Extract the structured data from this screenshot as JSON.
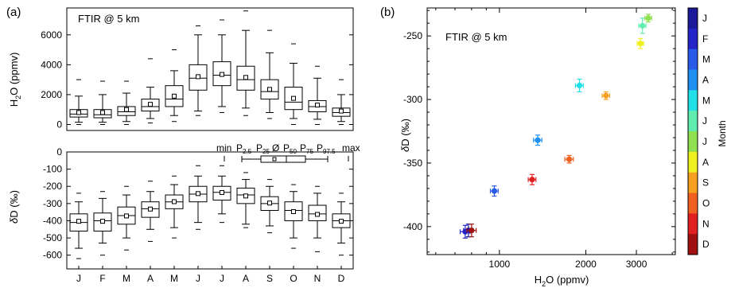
{
  "panel_a": {
    "label": "(a)",
    "top_annotation": "FTIR @ 5 km",
    "top_ylabel": "H2O (ppmv)",
    "bottom_ylabel": "δD (‰)",
    "legend": {
      "min": "min",
      "p2_5": "P2.5",
      "p25": "P25",
      "mean": "Ø",
      "p50": "P50",
      "p75": "P75",
      "p97_5": "P97.5",
      "max": "max"
    }
  },
  "panel_b": {
    "label": "(b)",
    "annotation": "FTIR @ 5 km",
    "xlabel": "H2O (ppmv)",
    "ylabel": "δD (‰)",
    "colorbar_label": "Month"
  },
  "chart_data": [
    {
      "type": "box",
      "title": "",
      "annotation": "FTIR @ 5 km",
      "ylabel": "H2O (ppmv)",
      "ylim": [
        -400,
        7800
      ],
      "yticks": [
        0,
        2000,
        4000,
        6000
      ],
      "categories": [
        "J",
        "F",
        "M",
        "A",
        "M",
        "J",
        "J",
        "A",
        "S",
        "O",
        "N",
        "D"
      ],
      "boxes": [
        {
          "min": 0,
          "p2_5": 150,
          "p25": 500,
          "p50": 700,
          "p75": 1000,
          "p97_5": 1900,
          "max": 3000,
          "mean": 800
        },
        {
          "min": 0,
          "p2_5": 150,
          "p25": 450,
          "p50": 650,
          "p75": 1000,
          "p97_5": 2000,
          "max": 2900,
          "mean": 800
        },
        {
          "min": 0,
          "p2_5": 200,
          "p25": 600,
          "p50": 850,
          "p75": 1200,
          "p97_5": 2100,
          "max": 2900,
          "mean": 1000
        },
        {
          "min": 100,
          "p2_5": 400,
          "p25": 900,
          "p50": 1200,
          "p75": 1700,
          "p97_5": 2500,
          "max": 4400,
          "mean": 1350
        },
        {
          "min": 200,
          "p2_5": 600,
          "p25": 1200,
          "p50": 1700,
          "p75": 2600,
          "p97_5": 3600,
          "max": 5000,
          "mean": 1900
        },
        {
          "min": 600,
          "p2_5": 900,
          "p25": 2300,
          "p50": 3100,
          "p75": 4000,
          "p97_5": 6000,
          "max": 6600,
          "mean": 3200
        },
        {
          "min": 800,
          "p2_5": 1200,
          "p25": 2600,
          "p50": 3300,
          "p75": 4200,
          "p97_5": 6000,
          "max": 7000,
          "mean": 3350
        },
        {
          "min": 600,
          "p2_5": 1100,
          "p25": 2300,
          "p50": 3000,
          "p75": 3900,
          "p97_5": 6300,
          "max": 7600,
          "mean": 3150
        },
        {
          "min": 400,
          "p2_5": 800,
          "p25": 1700,
          "p50": 2200,
          "p75": 3000,
          "p97_5": 4800,
          "max": 6300,
          "mean": 2350
        },
        {
          "min": 0,
          "p2_5": 400,
          "p25": 1000,
          "p50": 1500,
          "p75": 2500,
          "p97_5": 4100,
          "max": 5400,
          "mean": 1750
        },
        {
          "min": 0,
          "p2_5": 350,
          "p25": 850,
          "p50": 1200,
          "p75": 1600,
          "p97_5": 3100,
          "max": 3900,
          "mean": 1300
        },
        {
          "min": 0,
          "p2_5": 200,
          "p25": 550,
          "p50": 800,
          "p75": 1100,
          "p97_5": 2000,
          "max": 3000,
          "mean": 900
        }
      ]
    },
    {
      "type": "box",
      "title": "",
      "ylabel": "δD (‰)",
      "ylim": [
        -680,
        0
      ],
      "yticks": [
        0,
        -100,
        -200,
        -300,
        -400,
        -500,
        -600
      ],
      "categories": [
        "J",
        "F",
        "M",
        "A",
        "M",
        "J",
        "J",
        "A",
        "S",
        "O",
        "N",
        "D"
      ],
      "boxes": [
        {
          "min": -620,
          "p2_5": -560,
          "p25": -460,
          "p50": -410,
          "p75": -360,
          "p97_5": -290,
          "max": -240,
          "mean": -403
        },
        {
          "min": -600,
          "p2_5": -530,
          "p25": -460,
          "p50": -400,
          "p75": -355,
          "p97_5": -270,
          "max": -230,
          "mean": -403
        },
        {
          "min": -570,
          "p2_5": -500,
          "p25": -420,
          "p50": -370,
          "p75": -320,
          "p97_5": -250,
          "max": -200,
          "mean": -372
        },
        {
          "min": -520,
          "p2_5": -450,
          "p25": -380,
          "p50": -330,
          "p75": -290,
          "p97_5": -230,
          "max": -170,
          "mean": -332
        },
        {
          "min": -500,
          "p2_5": -440,
          "p25": -330,
          "p50": -290,
          "p75": -250,
          "p97_5": -190,
          "max": -140,
          "mean": -289
        },
        {
          "min": -450,
          "p2_5": -410,
          "p25": -290,
          "p50": -245,
          "p75": -200,
          "p97_5": -140,
          "max": -80,
          "mean": -242
        },
        {
          "min": -410,
          "p2_5": -360,
          "p25": -280,
          "p50": -235,
          "p75": -200,
          "p97_5": -140,
          "max": -80,
          "mean": -236
        },
        {
          "min": -440,
          "p2_5": -420,
          "p25": -300,
          "p50": -250,
          "p75": -210,
          "p97_5": -160,
          "max": -120,
          "mean": -256
        },
        {
          "min": -470,
          "p2_5": -430,
          "p25": -340,
          "p50": -300,
          "p75": -260,
          "p97_5": -200,
          "max": -160,
          "mean": -297
        },
        {
          "min": -560,
          "p2_5": -500,
          "p25": -400,
          "p50": -340,
          "p75": -290,
          "p97_5": -230,
          "max": -190,
          "mean": -347
        },
        {
          "min": -580,
          "p2_5": -500,
          "p25": -400,
          "p50": -360,
          "p75": -310,
          "p97_5": -240,
          "max": -200,
          "mean": -363
        },
        {
          "min": -600,
          "p2_5": -530,
          "p25": -440,
          "p50": -400,
          "p75": -360,
          "p97_5": -290,
          "max": -240,
          "mean": -403
        }
      ]
    },
    {
      "type": "scatter",
      "title": "",
      "annotation": "FTIR @ 5 km",
      "xlabel": "H2O (ppmv)",
      "ylabel": "δD (‰)",
      "xscale": "log",
      "xlim": [
        560,
        4100
      ],
      "ylim": [
        -422,
        -228
      ],
      "xticks": [
        1000,
        2000,
        3000
      ],
      "yticks": [
        -400,
        -350,
        -300,
        -250
      ],
      "points": [
        {
          "month": "J",
          "x": 780,
          "y": -403,
          "xerr": 30,
          "yerr": 5,
          "color": "#1a1a9a"
        },
        {
          "month": "F",
          "x": 760,
          "y": -404,
          "xerr": 30,
          "yerr": 5,
          "color": "#2424c8"
        },
        {
          "month": "M",
          "x": 960,
          "y": -372,
          "xerr": 30,
          "yerr": 4,
          "color": "#2a5ae8"
        },
        {
          "month": "A",
          "x": 1360,
          "y": -332,
          "xerr": 45,
          "yerr": 4,
          "color": "#1e90f0"
        },
        {
          "month": "M",
          "x": 1900,
          "y": -289,
          "xerr": 60,
          "yerr": 5,
          "color": "#22e0e8"
        },
        {
          "month": "J",
          "x": 3150,
          "y": -242,
          "xerr": 90,
          "yerr": 6,
          "color": "#60eeb0"
        },
        {
          "month": "J",
          "x": 3300,
          "y": -236,
          "xerr": 90,
          "yerr": 3,
          "color": "#90e050"
        },
        {
          "month": "A",
          "x": 3100,
          "y": -256,
          "xerr": 80,
          "yerr": 4,
          "color": "#f0f020"
        },
        {
          "month": "S",
          "x": 2350,
          "y": -297,
          "xerr": 70,
          "yerr": 3,
          "color": "#f8a020"
        },
        {
          "month": "O",
          "x": 1750,
          "y": -347,
          "xerr": 60,
          "yerr": 3,
          "color": "#f06020"
        },
        {
          "month": "N",
          "x": 1300,
          "y": -363,
          "xerr": 40,
          "yerr": 4,
          "color": "#e02020"
        },
        {
          "month": "D",
          "x": 800,
          "y": -403,
          "xerr": 30,
          "yerr": 5,
          "color": "#a01010"
        }
      ],
      "colorbar": {
        "label": "Month",
        "labels": [
          "J",
          "F",
          "M",
          "A",
          "M",
          "J",
          "J",
          "A",
          "S",
          "O",
          "N",
          "D"
        ],
        "colors": [
          "#1a1a9a",
          "#2424c8",
          "#2a5ae8",
          "#1e90f0",
          "#22e0e8",
          "#60eeb0",
          "#90e050",
          "#f0f020",
          "#f8a020",
          "#f06020",
          "#e02020",
          "#a01010"
        ]
      }
    }
  ]
}
